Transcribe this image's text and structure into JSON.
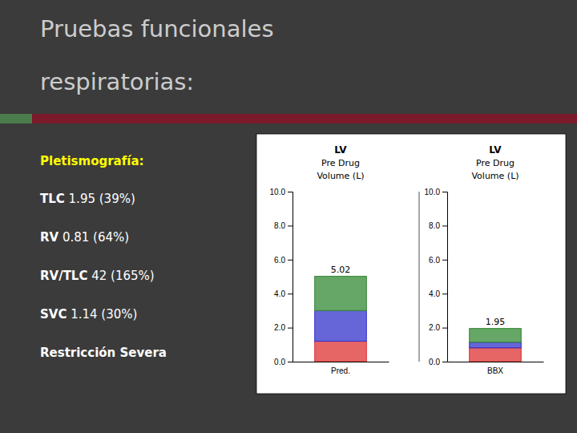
{
  "slide": {
    "title": [
      "Pruebas funcionales",
      "respiratorias:"
    ],
    "subtitle": "Pletismografía:",
    "lines": [
      {
        "bold": "TLC",
        "rest": " 1.95 (39%)"
      },
      {
        "bold": "RV",
        "rest": " 0.81 (64%)"
      },
      {
        "bold": "RV/TLC",
        "rest": " 42 (165%)"
      },
      {
        "bold": "SVC",
        "rest": " 1.14 (30%)"
      },
      {
        "bold": "Restricción Severa"
      }
    ],
    "colors": {
      "background": "#3b3b3b",
      "title": "#cccccc",
      "subtitle": "#ffff00",
      "text": "#ffffff",
      "accent": [
        "#4a7c4e",
        "#7a1a2a"
      ]
    }
  },
  "chart_data": [
    {
      "type": "bar",
      "stacked": true,
      "title": "LV",
      "subtitle": "Pre Drug",
      "ylabel": "Volume (L)",
      "categories": [
        "Pred."
      ],
      "series": [
        {
          "color": "#dd3333",
          "values": [
            1.2
          ]
        },
        {
          "color": "#3333cc",
          "values": [
            1.8
          ]
        },
        {
          "color": "#338833",
          "values": [
            2.02
          ]
        }
      ],
      "totals": [
        5.02
      ],
      "ylim": [
        0,
        10
      ],
      "yticks": [
        {
          "value": 0,
          "label": "0.0"
        },
        {
          "value": 2,
          "label": "2.0"
        },
        {
          "value": 4,
          "label": "4.0"
        },
        {
          "value": 6,
          "label": "6.0"
        },
        {
          "value": 8,
          "label": "8.0"
        },
        {
          "value": 10,
          "label": "10.0"
        }
      ]
    },
    {
      "type": "bar",
      "stacked": true,
      "title": "LV",
      "subtitle": "Pre Drug",
      "ylabel": "Volume (L)",
      "categories": [
        "BBX"
      ],
      "series": [
        {
          "color": "#dd3333",
          "values": [
            0.81
          ]
        },
        {
          "color": "#3333cc",
          "values": [
            0.33
          ]
        },
        {
          "color": "#338833",
          "values": [
            0.81
          ]
        }
      ],
      "totals": [
        1.95
      ],
      "ylim": [
        0,
        10
      ],
      "yticks": [
        {
          "value": 0,
          "label": "0.0"
        },
        {
          "value": 2,
          "label": "2.0"
        },
        {
          "value": 4,
          "label": "4.0"
        },
        {
          "value": 6,
          "label": "6.0"
        },
        {
          "value": 8,
          "label": "8.0"
        },
        {
          "value": 10,
          "label": "10.0"
        }
      ]
    }
  ]
}
